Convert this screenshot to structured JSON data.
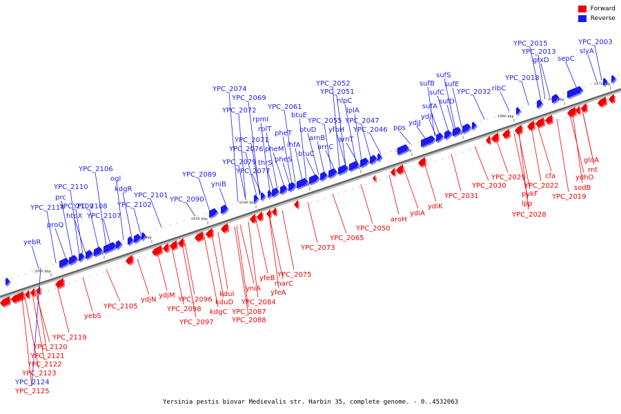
{
  "legend": [
    {
      "label": "Forward",
      "color": "#ee0000"
    },
    {
      "label": "Reverse",
      "color": "#1a1aee"
    }
  ],
  "caption": "Yersinia pestis biovar Medievalis str. Harbin 35, complete genome. - 0..4532063",
  "ticks": [
    "2080 kbp",
    "2070 kbp",
    "2060 kbp",
    "2050 kbp",
    "2040 kbp",
    "2030 kbp",
    "2020 kbp",
    "2010 kbp",
    "2000 kbp",
    "1990 kbp",
    "1980 kbp",
    "1970 kbp"
  ],
  "reverse_genes": [
    "YPC_2003",
    "slyA",
    "YPC_2015",
    "YPC_2013",
    "grxD",
    "sepC",
    "YPC_2018",
    "ribC",
    "sufS",
    "sufB",
    "sufE",
    "sufC",
    "sufD",
    "sufA",
    "YPC_2032",
    "ydjI",
    "ydjJ",
    "pps",
    "YPC_2052",
    "YPC_2051",
    "nlpC",
    "lplA",
    "YPC_2047",
    "YPC_2046",
    "YPC_2055",
    "yfbH",
    "arnT",
    "arnB",
    "arnC",
    "btuD",
    "btuE",
    "btuC",
    "YPC_2061",
    "ihfA",
    "pheT",
    "pheM",
    "pheS",
    "rpmI",
    "rplT",
    "thrS",
    "YPC_2074",
    "YPC_2069",
    "YPC_2072",
    "YPC_2071",
    "YPC_2076",
    "YPC_2079",
    "YPC_2077",
    "YPC_2089",
    "yniB",
    "YPC_2090",
    "YPC_2106",
    "ogl",
    "kdgR",
    "YPC_2101",
    "YPC_2102",
    "YPC_2110",
    "prc",
    "YPC_2109",
    "YPC_2108",
    "htpX",
    "YPC_2107",
    "YPC_2114",
    "proQ",
    "yebR",
    "YPC_2124"
  ],
  "forward_genes": [
    "gloA",
    "rnt",
    "ydhO",
    "sodB",
    "YPC_2019",
    "cfa",
    "YPC_2022",
    "pykF",
    "lpp",
    "YPC_2028",
    "YPC_2029",
    "YPC_2030",
    "YPC_2031",
    "ydiK",
    "ydiA",
    "aroH",
    "YPC_2050",
    "YPC_2065",
    "YPC_2073",
    "YPC_2075",
    "marC",
    "yfeA",
    "yfeB",
    "yniA",
    "YPC_2084",
    "YPC_2087",
    "YPC_2088",
    "kdul",
    "kduD",
    "kdgC",
    "YPC_2096",
    "YPC_2098",
    "YPC_2097",
    "ydjM",
    "ydjN",
    "YPC_2105",
    "yebS",
    "YPC_2119",
    "YPC_2120",
    "YPC_2121",
    "YPC_2122",
    "YPC_2123",
    "YPC_2125"
  ]
}
